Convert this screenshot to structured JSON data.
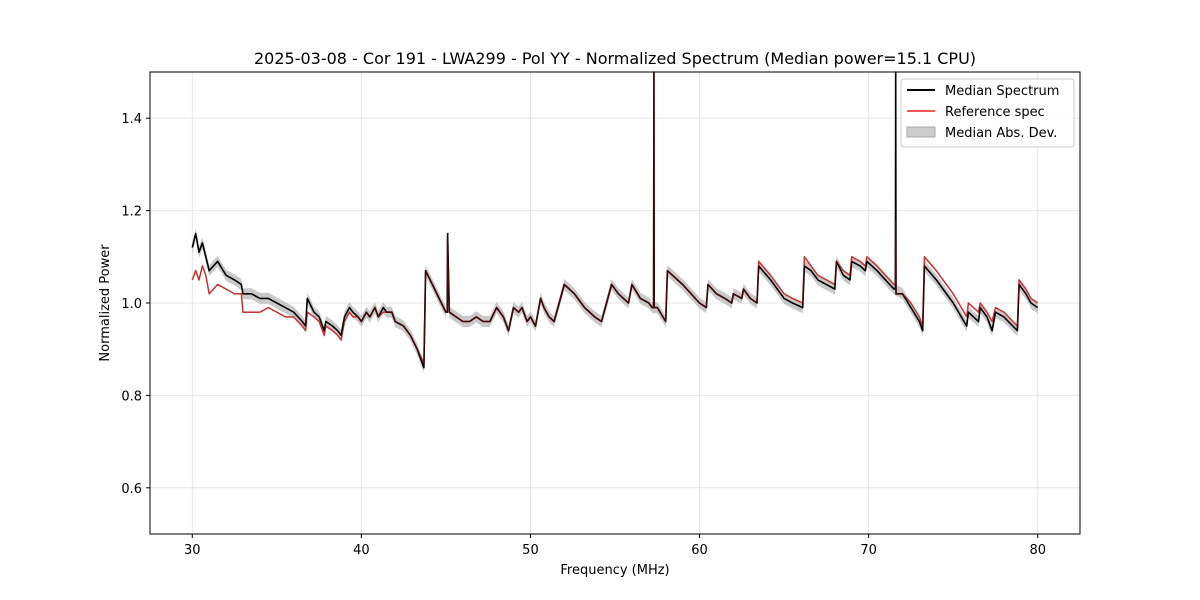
{
  "chart_data": {
    "type": "line",
    "title": "2025-03-08 - Cor 191 - LWA299 - Pol YY - Normalized Spectrum (Median power=15.1 CPU)",
    "xlabel": "Frequency (MHz)",
    "ylabel": "Normalized Power",
    "xlim": [
      27.5,
      82.5
    ],
    "ylim": [
      0.5,
      1.5
    ],
    "xticks": [
      30,
      40,
      50,
      60,
      70,
      80
    ],
    "yticks": [
      0.6,
      0.8,
      1.0,
      1.2,
      1.4
    ],
    "xtick_labels": [
      "30",
      "40",
      "50",
      "60",
      "70",
      "80"
    ],
    "ytick_labels": [
      "0.6",
      "0.8",
      "1.0",
      "1.2",
      "1.4"
    ],
    "grid": true,
    "legend_position": "top-right",
    "mad_width": 0.012,
    "spikes": [
      {
        "x": 45.1,
        "y_median": 1.15,
        "y_reference": 1.14
      },
      {
        "x": 57.3,
        "y_median": 1.5,
        "y_reference": 1.5
      },
      {
        "x": 71.6,
        "y_median": 1.5,
        "y_reference": 1.18
      }
    ],
    "series": [
      {
        "name": "Median Spectrum",
        "color": "#000000",
        "x": [
          30.0,
          30.2,
          30.4,
          30.6,
          30.8,
          31.0,
          31.5,
          32.0,
          32.5,
          32.9,
          33.0,
          33.5,
          34.0,
          34.5,
          35.0,
          35.5,
          36.0,
          36.5,
          36.7,
          36.8,
          37.2,
          37.5,
          37.8,
          37.9,
          38.3,
          38.6,
          38.8,
          39.0,
          39.3,
          39.5,
          39.8,
          40.0,
          40.3,
          40.5,
          40.8,
          41.0,
          41.3,
          41.5,
          41.8,
          42.0,
          42.5,
          42.9,
          43.3,
          43.7,
          43.8,
          44.2,
          44.6,
          45.0,
          45.1,
          45.2,
          45.6,
          46.0,
          46.4,
          46.8,
          47.2,
          47.6,
          48.0,
          48.4,
          48.7,
          49.0,
          49.3,
          49.5,
          49.8,
          50.0,
          50.3,
          50.6,
          50.8,
          51.1,
          51.4,
          51.7,
          52.0,
          52.6,
          53.2,
          53.8,
          54.2,
          54.8,
          55.2,
          55.8,
          56.0,
          56.5,
          57.0,
          57.2,
          57.5,
          58.0,
          58.1,
          59.0,
          60.0,
          60.4,
          60.5,
          61.0,
          61.5,
          61.9,
          62.0,
          62.5,
          62.6,
          63.0,
          63.4,
          63.5,
          64.2,
          65.0,
          65.5,
          66.1,
          66.2,
          66.6,
          67.0,
          67.5,
          68.0,
          68.1,
          68.5,
          68.9,
          69.0,
          69.5,
          69.8,
          69.9,
          70.5,
          71.0,
          71.5,
          72.0,
          72.5,
          73.0,
          73.2,
          73.3,
          74.0,
          75.0,
          75.8,
          75.9,
          76.5,
          76.6,
          77.0,
          77.3,
          77.5,
          78.0,
          78.8,
          78.9,
          79.3,
          79.6,
          80.0
        ],
        "y": [
          1.12,
          1.15,
          1.11,
          1.13,
          1.1,
          1.07,
          1.09,
          1.06,
          1.05,
          1.04,
          1.02,
          1.02,
          1.01,
          1.01,
          1.0,
          0.99,
          0.98,
          0.96,
          0.95,
          1.01,
          0.98,
          0.97,
          0.94,
          0.96,
          0.95,
          0.94,
          0.93,
          0.97,
          0.99,
          0.98,
          0.97,
          0.96,
          0.98,
          0.97,
          0.99,
          0.97,
          0.99,
          0.98,
          0.98,
          0.96,
          0.95,
          0.93,
          0.9,
          0.86,
          1.07,
          1.04,
          1.01,
          0.98,
          1.15,
          0.98,
          0.97,
          0.96,
          0.96,
          0.97,
          0.96,
          0.96,
          0.99,
          0.97,
          0.94,
          0.99,
          0.98,
          0.99,
          0.96,
          0.97,
          0.95,
          1.01,
          0.99,
          0.97,
          0.96,
          1.0,
          1.04,
          1.02,
          0.99,
          0.97,
          0.96,
          1.04,
          1.02,
          1.0,
          1.04,
          1.01,
          1.0,
          0.99,
          0.99,
          0.96,
          1.07,
          1.04,
          1.0,
          0.99,
          1.04,
          1.02,
          1.01,
          1.0,
          1.02,
          1.01,
          1.03,
          1.01,
          1.0,
          1.08,
          1.05,
          1.01,
          1.0,
          0.99,
          1.08,
          1.07,
          1.05,
          1.04,
          1.03,
          1.09,
          1.06,
          1.05,
          1.09,
          1.08,
          1.07,
          1.09,
          1.07,
          1.05,
          1.03,
          1.02,
          0.99,
          0.96,
          0.94,
          1.08,
          1.05,
          1.0,
          0.95,
          0.98,
          0.96,
          0.99,
          0.97,
          0.94,
          0.98,
          0.97,
          0.94,
          1.04,
          1.02,
          1.0,
          0.99
        ]
      },
      {
        "name": "Reference spec",
        "color": "#ee5555",
        "x": [
          30.0,
          30.2,
          30.4,
          30.6,
          30.8,
          31.0,
          31.5,
          32.0,
          32.5,
          32.9,
          33.0,
          33.5,
          34.0,
          34.5,
          35.0,
          35.5,
          36.0,
          36.5,
          36.7,
          36.8,
          37.2,
          37.5,
          37.8,
          37.9,
          38.3,
          38.6,
          38.8,
          39.0,
          39.3,
          39.5,
          39.8,
          40.0,
          40.3,
          40.5,
          40.8,
          41.0,
          41.3,
          41.5,
          41.8,
          42.0,
          42.5,
          42.9,
          43.3,
          43.7,
          43.8,
          44.2,
          44.6,
          45.0,
          45.1,
          45.2,
          45.6,
          46.0,
          46.4,
          46.8,
          47.2,
          47.6,
          48.0,
          48.4,
          48.7,
          49.0,
          49.3,
          49.5,
          49.8,
          50.0,
          50.3,
          50.6,
          50.8,
          51.1,
          51.4,
          51.7,
          52.0,
          52.6,
          53.2,
          53.8,
          54.2,
          54.8,
          55.2,
          55.8,
          56.0,
          56.5,
          57.0,
          57.2,
          57.5,
          58.0,
          58.1,
          59.0,
          60.0,
          60.4,
          60.5,
          61.0,
          61.5,
          61.9,
          62.0,
          62.5,
          62.6,
          63.0,
          63.4,
          63.5,
          64.2,
          65.0,
          65.5,
          66.1,
          66.2,
          66.6,
          67.0,
          67.5,
          68.0,
          68.1,
          68.5,
          68.9,
          69.0,
          69.5,
          69.8,
          69.9,
          70.5,
          71.0,
          71.5,
          72.0,
          72.5,
          73.0,
          73.2,
          73.3,
          74.0,
          75.0,
          75.8,
          75.9,
          76.5,
          76.6,
          77.0,
          77.3,
          77.5,
          78.0,
          78.8,
          78.9,
          79.3,
          79.6,
          80.0
        ],
        "y": [
          1.05,
          1.07,
          1.05,
          1.08,
          1.06,
          1.02,
          1.04,
          1.03,
          1.02,
          1.02,
          0.98,
          0.98,
          0.98,
          0.99,
          0.98,
          0.97,
          0.97,
          0.95,
          0.94,
          0.98,
          0.97,
          0.96,
          0.93,
          0.95,
          0.94,
          0.93,
          0.92,
          0.96,
          0.98,
          0.97,
          0.97,
          0.96,
          0.98,
          0.97,
          0.99,
          0.97,
          0.98,
          0.98,
          0.98,
          0.96,
          0.95,
          0.93,
          0.9,
          0.87,
          1.07,
          1.04,
          1.01,
          0.98,
          1.14,
          0.98,
          0.97,
          0.96,
          0.96,
          0.97,
          0.96,
          0.96,
          0.99,
          0.97,
          0.94,
          0.99,
          0.98,
          0.99,
          0.96,
          0.97,
          0.95,
          1.01,
          0.99,
          0.97,
          0.96,
          1.0,
          1.04,
          1.02,
          0.99,
          0.97,
          0.96,
          1.04,
          1.02,
          1.0,
          1.04,
          1.01,
          1.0,
          0.99,
          0.99,
          0.96,
          1.07,
          1.04,
          1.0,
          0.99,
          1.04,
          1.02,
          1.01,
          1.0,
          1.02,
          1.01,
          1.03,
          1.01,
          1.0,
          1.09,
          1.06,
          1.02,
          1.01,
          1.0,
          1.1,
          1.08,
          1.06,
          1.05,
          1.04,
          1.09,
          1.07,
          1.06,
          1.1,
          1.09,
          1.08,
          1.1,
          1.08,
          1.06,
          1.04,
          1.02,
          1.0,
          0.97,
          0.95,
          1.1,
          1.07,
          1.02,
          0.97,
          1.0,
          0.98,
          1.0,
          0.98,
          0.96,
          0.99,
          0.98,
          0.95,
          1.05,
          1.03,
          1.01,
          1.0
        ]
      }
    ],
    "legend": [
      {
        "label": "Median Spectrum",
        "kind": "line",
        "color": "#000000"
      },
      {
        "label": "Reference spec",
        "kind": "line",
        "color": "#ee5555"
      },
      {
        "label": "Median Abs. Dev.",
        "kind": "patch",
        "color": "#cccccc"
      }
    ]
  }
}
